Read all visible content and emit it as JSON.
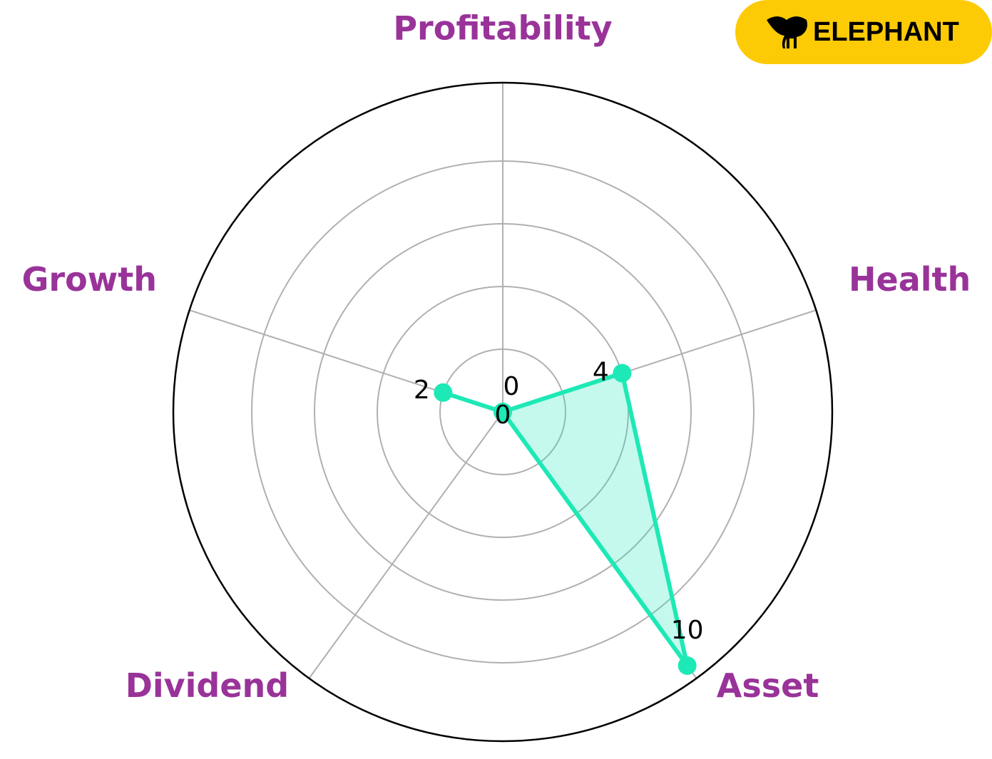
{
  "chart_data": {
    "type": "radar",
    "categories": [
      "Profitability",
      "Health",
      "Asset",
      "Dividend",
      "Growth"
    ],
    "values": [
      0,
      4,
      10,
      0,
      2
    ],
    "color": "#1de9b6",
    "label_color": "#993399",
    "ylim": [
      0,
      10.5
    ],
    "yticks": [
      2,
      4,
      6,
      8
    ],
    "grid": true
  },
  "logo": {
    "text": "ELEPHANT"
  }
}
